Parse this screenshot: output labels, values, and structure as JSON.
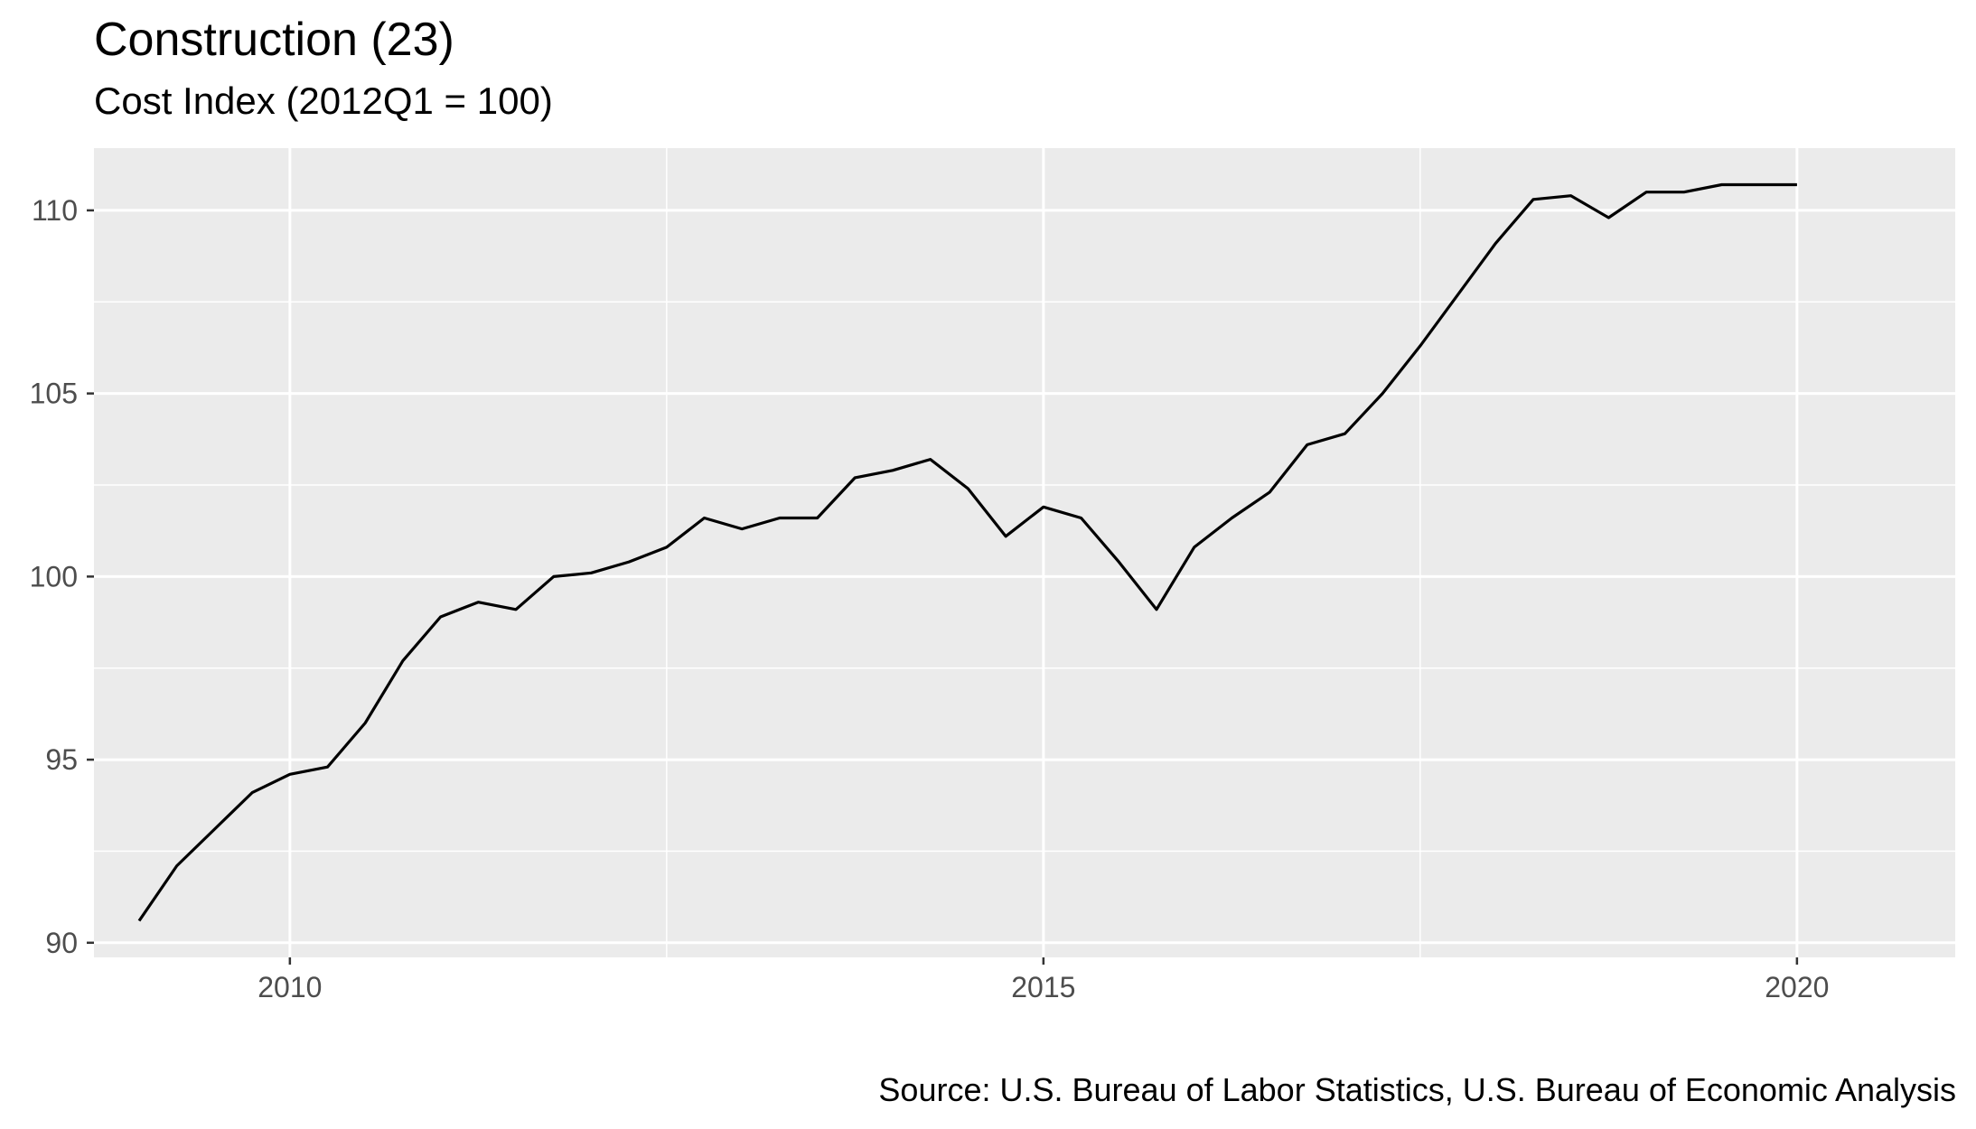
{
  "chart_data": {
    "type": "line",
    "title": "Construction (23)",
    "subtitle": "Cost Index (2012Q1 = 100)",
    "caption": "Source: U.S. Bureau of Labor Statistics, U.S. Bureau of Economic Analysis",
    "xlabel": "",
    "ylabel": "",
    "xlim": [
      2008.7,
      2021.05
    ],
    "ylim": [
      89.6,
      111.7
    ],
    "x_ticks": [
      2010,
      2015,
      2020
    ],
    "x_tick_labels": [
      "2010",
      "2015",
      "2020"
    ],
    "y_ticks": [
      90,
      95,
      100,
      105,
      110
    ],
    "y_tick_labels": [
      "90",
      "95",
      "100",
      "105",
      "110"
    ],
    "grid": true,
    "legend": "none",
    "line_color": "#000000",
    "panel_color": "#ebebeb",
    "series": [
      {
        "x": [
          2009.0,
          2009.25,
          2009.5,
          2009.75,
          2010.0,
          2010.25,
          2010.5,
          2010.75,
          2011.0,
          2011.25,
          2011.5,
          2011.75,
          2012.0,
          2012.25,
          2012.5,
          2012.75,
          2013.0,
          2013.25,
          2013.5,
          2013.75,
          2014.0,
          2014.25,
          2014.5,
          2014.75,
          2015.0,
          2015.25,
          2015.5,
          2015.75,
          2016.0,
          2016.25,
          2016.5,
          2016.75,
          2017.0,
          2017.25,
          2017.5,
          2017.75,
          2018.0,
          2018.25,
          2018.5,
          2018.75,
          2019.0,
          2019.25,
          2019.5,
          2019.75,
          2020.0
        ],
        "y": [
          90.6,
          92.1,
          93.1,
          94.1,
          94.6,
          94.8,
          96.0,
          97.7,
          98.9,
          99.3,
          99.1,
          100.0,
          100.1,
          100.4,
          100.8,
          101.6,
          101.3,
          101.6,
          101.6,
          102.7,
          102.9,
          103.2,
          102.4,
          101.1,
          101.9,
          101.6,
          100.4,
          99.1,
          100.8,
          101.6,
          102.3,
          103.6,
          103.9,
          105.0,
          106.3,
          107.7,
          109.1,
          110.3,
          110.4,
          109.8,
          110.5,
          110.5,
          110.7,
          110.7,
          110.7
        ]
      }
    ]
  }
}
